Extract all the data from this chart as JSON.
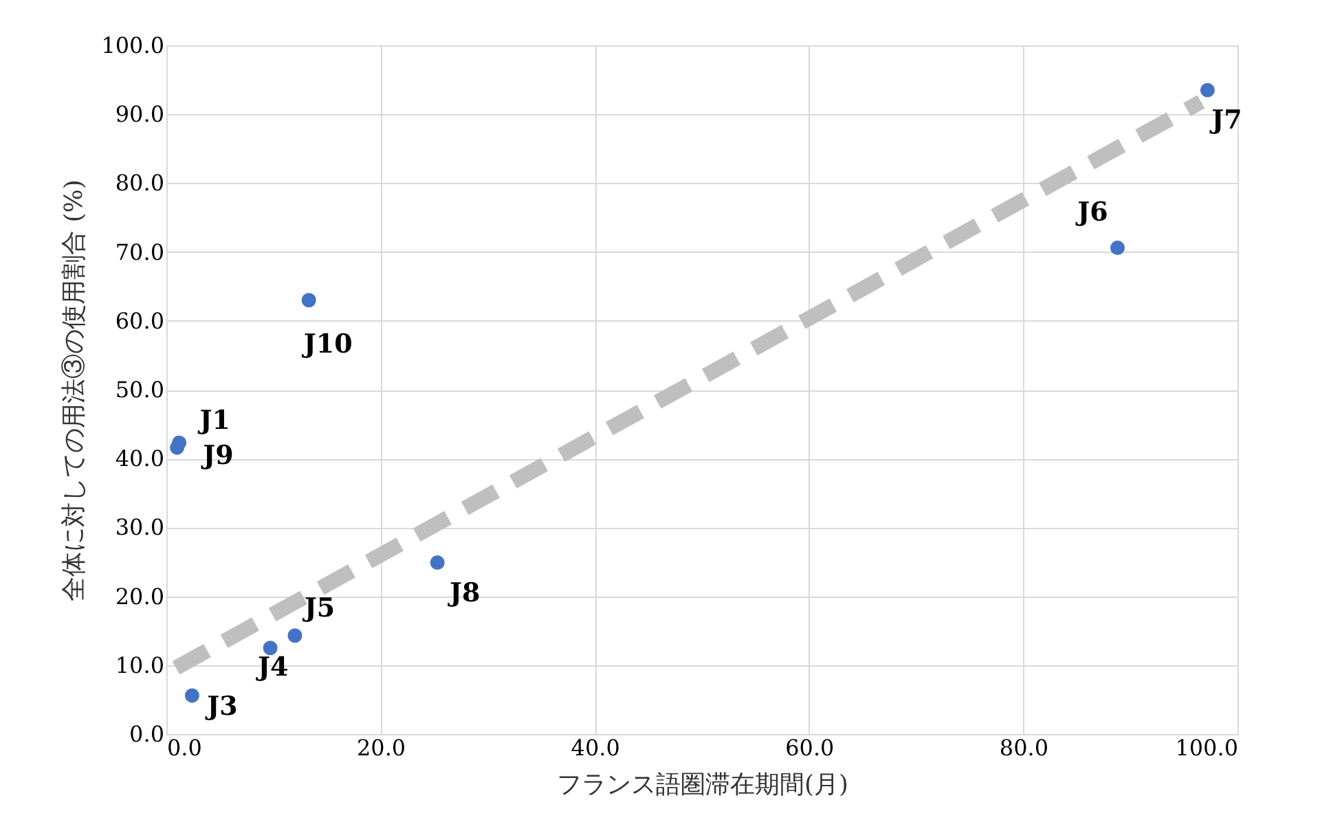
{
  "chart_data": {
    "type": "scatter",
    "xlabel": "フランス語圏滞在期間(月)",
    "ylabel": "全体に対しての用法③の使用割合 (%)",
    "xlim": [
      0,
      100
    ],
    "ylim": [
      0,
      100
    ],
    "xticks": [
      {
        "value": 0,
        "label": "0.0"
      },
      {
        "value": 20,
        "label": "20.0"
      },
      {
        "value": 40,
        "label": "40.0"
      },
      {
        "value": 60,
        "label": "60.0"
      },
      {
        "value": 80,
        "label": "80.0"
      },
      {
        "value": 100,
        "label": "100.0"
      }
    ],
    "yticks": [
      {
        "value": 0,
        "label": "0.0"
      },
      {
        "value": 10,
        "label": "10.0"
      },
      {
        "value": 20,
        "label": "20.0"
      },
      {
        "value": 30,
        "label": "30.0"
      },
      {
        "value": 40,
        "label": "40.0"
      },
      {
        "value": 50,
        "label": "50.0"
      },
      {
        "value": 60,
        "label": "60.0"
      },
      {
        "value": 70,
        "label": "70.0"
      },
      {
        "value": 80,
        "label": "80.0"
      },
      {
        "value": 90,
        "label": "90.0"
      },
      {
        "value": 100,
        "label": "100.0"
      }
    ],
    "grid": true,
    "series": [
      {
        "color": "#4472c4",
        "marker": "circle",
        "x": [
          1.2,
          1.0,
          2.4,
          9.7,
          12.0,
          25.3,
          13.3,
          88.8,
          97.2
        ],
        "values": [
          42.3,
          41.6,
          5.6,
          12.5,
          14.3,
          24.9,
          63.0,
          70.6,
          93.5
        ]
      },
      {
        "type": "line",
        "color": "#bfbfbf",
        "line_style": "dashed",
        "x": [
          0.9,
          96.6
        ],
        "values": [
          9.6,
          91.8
        ]
      }
    ],
    "annotations": [
      {
        "text": "J1",
        "x": 1.2,
        "y": 42.3
      },
      {
        "text": "J9",
        "x": 1.0,
        "y": 41.6
      },
      {
        "text": "J3",
        "x": 2.4,
        "y": 5.6
      },
      {
        "text": "J4",
        "x": 9.7,
        "y": 12.5
      },
      {
        "text": "J5",
        "x": 12.0,
        "y": 14.3
      },
      {
        "text": "J8",
        "x": 25.3,
        "y": 24.9
      },
      {
        "text": "J10",
        "x": 13.3,
        "y": 63.0
      },
      {
        "text": "J6",
        "x": 88.8,
        "y": 70.6
      },
      {
        "text": "J7",
        "x": 97.2,
        "y": 93.5
      }
    ]
  }
}
